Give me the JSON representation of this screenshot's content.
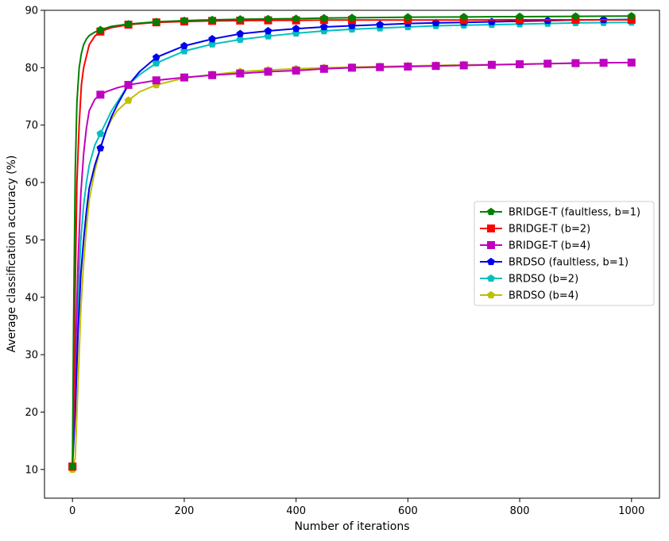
{
  "chart_data": {
    "type": "line",
    "title": "",
    "xlabel": "Number of iterations",
    "ylabel": "Average classification accuracy (%)",
    "xlim": [
      -50,
      1050
    ],
    "ylim": [
      5,
      90
    ],
    "x_ticks": [
      0,
      200,
      400,
      600,
      800,
      1000
    ],
    "y_ticks": [
      10,
      20,
      30,
      40,
      50,
      60,
      70,
      80,
      90
    ],
    "grid": false,
    "legend_position": "center-right",
    "series": [
      {
        "name": "BRIDGE-T (faultless, b=1)",
        "color": "#008000",
        "marker": "pentagon",
        "x": [
          0,
          2,
          5,
          8,
          12,
          16,
          20,
          25,
          30,
          40,
          50,
          70,
          100,
          150,
          200,
          250,
          300,
          350,
          400,
          450,
          500,
          600,
          700,
          800,
          900,
          1000
        ],
        "y": [
          10.5,
          35,
          62,
          74,
          80,
          82.5,
          84,
          85,
          85.6,
          86.2,
          86.6,
          87.2,
          87.6,
          88.0,
          88.2,
          88.35,
          88.45,
          88.5,
          88.55,
          88.65,
          88.7,
          88.8,
          88.85,
          88.9,
          88.95,
          89.0
        ]
      },
      {
        "name": "BRIDGE-T (b=2)",
        "color": "#ff0000",
        "marker": "square",
        "x": [
          0,
          2,
          5,
          8,
          12,
          16,
          20,
          25,
          30,
          40,
          50,
          70,
          100,
          150,
          200,
          250,
          300,
          350,
          400,
          450,
          500,
          600,
          700,
          800,
          900,
          1000
        ],
        "y": [
          10.5,
          20,
          42,
          60,
          70,
          77,
          80,
          82,
          84,
          85.5,
          86.3,
          87.0,
          87.5,
          87.9,
          88.05,
          88.15,
          88.2,
          88.25,
          88.25,
          88.3,
          88.3,
          88.3,
          88.3,
          88.35,
          88.35,
          88.35
        ]
      },
      {
        "name": "BRIDGE-T (b=4)",
        "color": "#c000c0",
        "marker": "square",
        "x": [
          0,
          5,
          10,
          15,
          20,
          25,
          30,
          40,
          50,
          60,
          80,
          100,
          150,
          200,
          250,
          300,
          350,
          400,
          450,
          500,
          550,
          600,
          650,
          700,
          750,
          800,
          850,
          900,
          950,
          1000
        ],
        "y": [
          10.5,
          28,
          46,
          58,
          65,
          69.5,
          72.5,
          74.5,
          75.3,
          75.8,
          76.5,
          77.0,
          77.8,
          78.3,
          78.7,
          79.0,
          79.3,
          79.5,
          79.8,
          80.0,
          80.1,
          80.2,
          80.3,
          80.4,
          80.5,
          80.6,
          80.7,
          80.8,
          80.85,
          80.9
        ]
      },
      {
        "name": "BRDSO (faultless, b=1)",
        "color": "#0000ee",
        "marker": "pentagon",
        "x": [
          0,
          5,
          10,
          15,
          20,
          25,
          30,
          40,
          50,
          60,
          70,
          80,
          100,
          120,
          150,
          200,
          250,
          300,
          350,
          400,
          450,
          500,
          550,
          600,
          650,
          700,
          750,
          800,
          850,
          900,
          950,
          1000
        ],
        "y": [
          10.5,
          20,
          34,
          44,
          50,
          55,
          59,
          63,
          66,
          69,
          71.5,
          73.5,
          77.0,
          79.3,
          81.8,
          83.8,
          85.0,
          85.9,
          86.4,
          86.8,
          87.1,
          87.3,
          87.5,
          87.7,
          87.8,
          87.9,
          88.0,
          88.1,
          88.2,
          88.3,
          88.35,
          88.4
        ]
      },
      {
        "name": "BRDSO (b=2)",
        "color": "#00bfbf",
        "marker": "pentagon",
        "x": [
          0,
          5,
          10,
          15,
          20,
          25,
          30,
          40,
          50,
          60,
          70,
          80,
          100,
          120,
          150,
          200,
          250,
          300,
          350,
          400,
          450,
          500,
          550,
          600,
          650,
          700,
          750,
          800,
          850,
          900,
          950,
          1000
        ],
        "y": [
          10.5,
          24,
          40,
          50,
          56,
          60,
          63,
          66.5,
          68.5,
          70.5,
          72.5,
          74,
          77.0,
          78.8,
          80.8,
          82.9,
          84.1,
          84.9,
          85.5,
          86.0,
          86.4,
          86.7,
          86.9,
          87.1,
          87.3,
          87.4,
          87.5,
          87.6,
          87.7,
          87.8,
          87.85,
          87.9
        ]
      },
      {
        "name": "BRDSO (b=4)",
        "color": "#bfbf00",
        "marker": "pentagon",
        "x": [
          0,
          5,
          10,
          15,
          20,
          25,
          30,
          40,
          50,
          60,
          70,
          80,
          100,
          120,
          150,
          200,
          250,
          300,
          350,
          400,
          450,
          500,
          550,
          600,
          650,
          700,
          750,
          800,
          850,
          900,
          950,
          1000
        ],
        "y": [
          10.0,
          12,
          25,
          38,
          46,
          52,
          57,
          62,
          66,
          69,
          71,
          72.5,
          74.3,
          75.8,
          77.0,
          78.2,
          78.8,
          79.3,
          79.6,
          79.8,
          80.0,
          80.1,
          80.2,
          80.3,
          80.4,
          80.5,
          80.55,
          80.6,
          80.7,
          80.75,
          80.85,
          80.9
        ]
      }
    ]
  }
}
